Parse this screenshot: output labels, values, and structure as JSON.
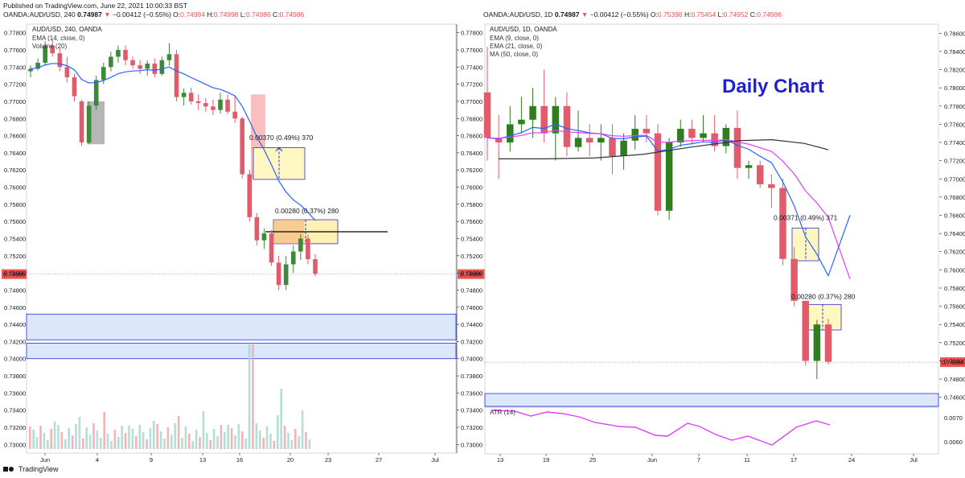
{
  "header": {
    "published": "Published on TradingView.com, June 22, 2021 10:00:33 BST"
  },
  "left": {
    "quote_symbol": "OANDA:AUD/USD, 240",
    "quote_open_val": "0.74987",
    "quote_change": "−0.00412 (−0.55%)",
    "quote_o": "0.74994",
    "quote_h": "0.74998",
    "quote_l": "0.74986",
    "quote_c": "0.74986",
    "title": "AUD/USD, 240, OANDA",
    "ind1": "EMA (14, close, 0)",
    "ind2": "Volume (20)",
    "price_tag": "0.74986",
    "ann1": "0.00370 (0.49%) 370",
    "ann2": "0.00280 (0.37%) 280",
    "y_ticks": [
      "0.77800",
      "0.77600",
      "0.77400",
      "0.77200",
      "0.77000",
      "0.76800",
      "0.76600",
      "0.76400",
      "0.76200",
      "0.76000",
      "0.75800",
      "0.75600",
      "0.75400",
      "0.75200",
      "0.75000",
      "0.74800",
      "0.74600",
      "0.74400",
      "0.74200",
      "0.74000",
      "0.73800",
      "0.73600",
      "0.73400",
      "0.73200",
      "0.73000"
    ],
    "x_ticks": [
      "Jun",
      "4",
      "9",
      "13",
      "16",
      "20",
      "23",
      "27",
      "Jul"
    ]
  },
  "right": {
    "quote_symbol": "OANDA:AUD/USD, 1D",
    "quote_open_val": "0.74987",
    "quote_change": "−0.00412 (−0.55%)",
    "quote_o": "0.75398",
    "quote_h": "0.75454",
    "quote_l": "0.74952",
    "quote_c": "0.74986",
    "title": "AUD/USD, 1D, OANDA",
    "ind1": "EMA (9, close, 0)",
    "ind2": "EMA (21, close, 0)",
    "ind3": "MA (50, close, 0)",
    "headline": "Daily Chart",
    "price_tag": "0.74986",
    "ann1": "0.00371 (0.49%) 371",
    "ann2": "0.00280 (0.37%) 280",
    "atr_label": "ATR (14)",
    "atr_ticks": [
      "0.0070",
      "0.0060"
    ],
    "y_ticks": [
      "0.78600",
      "0.78400",
      "0.78200",
      "0.78000",
      "0.77800",
      "0.77600",
      "0.77400",
      "0.77200",
      "0.77000",
      "0.76800",
      "0.76600",
      "0.76400",
      "0.76200",
      "0.76000",
      "0.75800",
      "0.75600",
      "0.75400",
      "0.75200",
      "0.75000",
      "0.74800",
      "0.74600"
    ],
    "x_ticks": [
      "13",
      "19",
      "25",
      "Jun",
      "7",
      "11",
      "17",
      "24",
      "Jul"
    ]
  },
  "footer": {
    "brand": "TradingView"
  },
  "colors": {
    "up": "#26a69a",
    "down": "#ef5350",
    "ema": "#2962ff",
    "ema21": "#e040fb",
    "ma50": "#333333",
    "zone": "#dbe7fa"
  },
  "chart_data": [
    {
      "type": "candlestick",
      "title": "AUD/USD, 240, OANDA",
      "ylim": [
        0.729,
        0.779
      ],
      "x_range": [
        "Jun 1",
        "Jul 1"
      ],
      "indicators": [
        "EMA (14, close, 0)",
        "Volume (20)"
      ],
      "last_price": 0.74986,
      "zones": [
        [
          0.7422,
          0.7452
        ],
        [
          0.74,
          0.7418
        ]
      ],
      "candles_ohlc": [
        [
          0.7735,
          0.7742,
          0.7728,
          0.7738
        ],
        [
          0.7738,
          0.775,
          0.7736,
          0.7745
        ],
        [
          0.7745,
          0.777,
          0.7742,
          0.7765
        ],
        [
          0.7765,
          0.7772,
          0.7752,
          0.7756
        ],
        [
          0.7756,
          0.7762,
          0.7735,
          0.774
        ],
        [
          0.774,
          0.7752,
          0.7722,
          0.7728
        ],
        [
          0.7728,
          0.7732,
          0.77,
          0.7706
        ],
        [
          0.77,
          0.7702,
          0.7648,
          0.7652
        ],
        [
          0.7652,
          0.77,
          0.765,
          0.7695
        ],
        [
          0.7695,
          0.773,
          0.769,
          0.7725
        ],
        [
          0.7725,
          0.7745,
          0.772,
          0.774
        ],
        [
          0.774,
          0.7758,
          0.7735,
          0.7752
        ],
        [
          0.7752,
          0.7765,
          0.7745,
          0.776
        ],
        [
          0.776,
          0.7765,
          0.7742,
          0.7748
        ],
        [
          0.7748,
          0.7752,
          0.7738,
          0.7742
        ],
        [
          0.7742,
          0.7748,
          0.7732,
          0.7738
        ],
        [
          0.7738,
          0.7748,
          0.773,
          0.7744
        ],
        [
          0.7744,
          0.775,
          0.7728,
          0.7732
        ],
        [
          0.7732,
          0.7752,
          0.773,
          0.7748
        ],
        [
          0.7748,
          0.7768,
          0.7742,
          0.7755
        ],
        [
          0.7755,
          0.776,
          0.77,
          0.7705
        ],
        [
          0.7705,
          0.7715,
          0.7695,
          0.771
        ],
        [
          0.771,
          0.7716,
          0.7696,
          0.77
        ],
        [
          0.77,
          0.7708,
          0.769,
          0.7698
        ],
        [
          0.7698,
          0.7704,
          0.7688,
          0.7694
        ],
        [
          0.7694,
          0.7702,
          0.7684,
          0.769
        ],
        [
          0.769,
          0.771,
          0.7686,
          0.7702
        ],
        [
          0.7702,
          0.7708,
          0.7685,
          0.7688
        ],
        [
          0.7688,
          0.7706,
          0.7675,
          0.768
        ],
        [
          0.768,
          0.7682,
          0.761,
          0.7615
        ],
        [
          0.7615,
          0.762,
          0.756,
          0.7565
        ],
        [
          0.7565,
          0.757,
          0.7532,
          0.7538
        ],
        [
          0.7538,
          0.7552,
          0.7528,
          0.7546
        ],
        [
          0.7546,
          0.755,
          0.7508,
          0.7512
        ],
        [
          0.7512,
          0.752,
          0.748,
          0.7486
        ],
        [
          0.7486,
          0.752,
          0.748,
          0.751
        ],
        [
          0.751,
          0.7532,
          0.75,
          0.7525
        ],
        [
          0.7525,
          0.7545,
          0.7515,
          0.754
        ],
        [
          0.754,
          0.7545,
          0.751,
          0.7516
        ],
        [
          0.7516,
          0.7522,
          0.7496,
          0.7499
        ]
      ]
    },
    {
      "type": "candlestick",
      "title": "AUD/USD, 1D, OANDA",
      "ylim": [
        0.745,
        0.787
      ],
      "x_range": [
        "May 13",
        "Jul 1"
      ],
      "indicators": [
        "EMA (9, close, 0)",
        "EMA (21, close, 0)",
        "MA (50, close, 0)",
        "ATR (14)"
      ],
      "last_price": 0.74986,
      "candles_ohlc": [
        [
          0.7795,
          0.7845,
          0.772,
          0.7745
        ],
        [
          0.7745,
          0.777,
          0.77,
          0.774
        ],
        [
          0.774,
          0.778,
          0.773,
          0.776
        ],
        [
          0.776,
          0.779,
          0.775,
          0.7765
        ],
        [
          0.7765,
          0.78,
          0.7745,
          0.778
        ],
        [
          0.778,
          0.782,
          0.774,
          0.775
        ],
        [
          0.775,
          0.779,
          0.772,
          0.778
        ],
        [
          0.778,
          0.7795,
          0.7725,
          0.7735
        ],
        [
          0.7735,
          0.7775,
          0.773,
          0.7745
        ],
        [
          0.7745,
          0.776,
          0.7725,
          0.774
        ],
        [
          0.774,
          0.776,
          0.772,
          0.7745
        ],
        [
          0.7745,
          0.776,
          0.7705,
          0.7725
        ],
        [
          0.7725,
          0.775,
          0.771,
          0.7742
        ],
        [
          0.7742,
          0.777,
          0.7732,
          0.7755
        ],
        [
          0.7755,
          0.777,
          0.774,
          0.775
        ],
        [
          0.775,
          0.776,
          0.766,
          0.7665
        ],
        [
          0.7665,
          0.7745,
          0.7655,
          0.774
        ],
        [
          0.774,
          0.7765,
          0.7735,
          0.7755
        ],
        [
          0.7755,
          0.7765,
          0.7738,
          0.7745
        ],
        [
          0.7745,
          0.777,
          0.774,
          0.775
        ],
        [
          0.775,
          0.777,
          0.773,
          0.7736
        ],
        [
          0.7736,
          0.776,
          0.7728,
          0.7756
        ],
        [
          0.7756,
          0.7775,
          0.77,
          0.7712
        ],
        [
          0.7712,
          0.772,
          0.77,
          0.7715
        ],
        [
          0.7715,
          0.772,
          0.769,
          0.7694
        ],
        [
          0.7694,
          0.7705,
          0.7668,
          0.769
        ],
        [
          0.769,
          0.77,
          0.7605,
          0.7612
        ],
        [
          0.7612,
          0.7625,
          0.756,
          0.7566
        ],
        [
          0.7566,
          0.7566,
          0.7495,
          0.75
        ],
        [
          0.75,
          0.7545,
          0.748,
          0.754
        ],
        [
          0.754,
          0.7546,
          0.7496,
          0.7499
        ]
      ]
    }
  ]
}
